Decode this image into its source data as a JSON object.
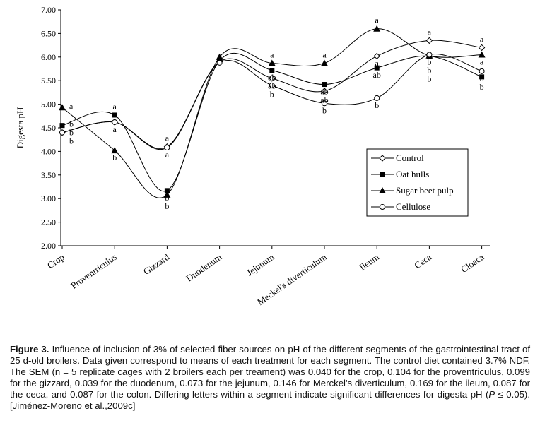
{
  "chart_data": {
    "type": "line",
    "ylabel": "Digesta pH",
    "ylim": [
      2.0,
      7.0
    ],
    "yticks": [
      "2.00",
      "2.50",
      "3.00",
      "3.50",
      "4.00",
      "4.50",
      "5.00",
      "5.50",
      "6.00",
      "6.50",
      "7.00"
    ],
    "categories": [
      "Crop",
      "Proventriculus",
      "Gizzard",
      "Duodenum",
      "Jejunum",
      "Meckel's diverticulum",
      "Ileum",
      "Ceca",
      "Cloaca"
    ],
    "legend_position": "inside-right",
    "smooth": true,
    "series": [
      {
        "name": "Control",
        "marker": "diamond-open",
        "values": [
          4.4,
          4.62,
          4.1,
          5.9,
          5.55,
          5.28,
          6.02,
          6.35,
          6.2
        ]
      },
      {
        "name": "Oat hulls",
        "marker": "square-filled",
        "values": [
          4.55,
          4.77,
          3.17,
          5.92,
          5.72,
          5.42,
          5.77,
          6.02,
          5.58
        ]
      },
      {
        "name": "Sugar beet pulp",
        "marker": "triangle-filled",
        "values": [
          4.93,
          4.02,
          3.08,
          6.0,
          5.87,
          5.87,
          6.6,
          6.03,
          6.05
        ]
      },
      {
        "name": "Cellulose",
        "marker": "circle-open",
        "values": [
          4.4,
          4.62,
          4.08,
          5.88,
          5.4,
          5.02,
          5.13,
          6.05,
          5.7
        ]
      }
    ],
    "annotations": [
      {
        "cat": 0,
        "series": "Sugar beet pulp",
        "label": "a"
      },
      {
        "cat": 0,
        "series": "Oat hulls",
        "label": "b"
      },
      {
        "cat": 0,
        "series": "Control",
        "label": "b"
      },
      {
        "cat": 0,
        "series": "Cellulose",
        "label": "b"
      },
      {
        "cat": 1,
        "series": "Oat hulls",
        "label": "a"
      },
      {
        "cat": 1,
        "series": "Control",
        "label": "a"
      },
      {
        "cat": 1,
        "series": "Sugar beet pulp",
        "label": "b"
      },
      {
        "cat": 2,
        "series": "Control",
        "label": "a"
      },
      {
        "cat": 2,
        "series": "Cellulose",
        "label": "a"
      },
      {
        "cat": 2,
        "series": "Oat hulls",
        "label": "b"
      },
      {
        "cat": 2,
        "series": "Sugar beet pulp",
        "label": "b"
      },
      {
        "cat": 4,
        "series": "Sugar beet pulp",
        "label": "a"
      },
      {
        "cat": 4,
        "series": "Control",
        "label": "ab"
      },
      {
        "cat": 4,
        "series": "Oat hulls",
        "label": "ab"
      },
      {
        "cat": 4,
        "series": "Cellulose",
        "label": "b"
      },
      {
        "cat": 5,
        "series": "Sugar beet pulp",
        "label": "a"
      },
      {
        "cat": 5,
        "series": "Oat hulls",
        "label": "ab"
      },
      {
        "cat": 5,
        "series": "Control",
        "label": "ab"
      },
      {
        "cat": 5,
        "series": "Cellulose",
        "label": "b"
      },
      {
        "cat": 6,
        "series": "Sugar beet pulp",
        "label": "a"
      },
      {
        "cat": 6,
        "series": "Control",
        "label": "a"
      },
      {
        "cat": 6,
        "series": "Oat hulls",
        "label": "ab"
      },
      {
        "cat": 6,
        "series": "Cellulose",
        "label": "b"
      },
      {
        "cat": 7,
        "series": "Control",
        "label": "a"
      },
      {
        "cat": 7,
        "series": "Cellulose",
        "label": "b"
      },
      {
        "cat": 7,
        "series": "Oat hulls",
        "label": "b"
      },
      {
        "cat": 7,
        "series": "Sugar beet pulp",
        "label": "b"
      },
      {
        "cat": 8,
        "series": "Control",
        "label": "a"
      },
      {
        "cat": 8,
        "series": "Sugar beet pulp",
        "label": "a"
      },
      {
        "cat": 8,
        "series": "Oat hulls",
        "label": "b"
      },
      {
        "cat": 8,
        "series": "Cellulose",
        "label": "b"
      }
    ]
  },
  "caption": {
    "label": "Figure 3.",
    "text_before": " Influence of inclusion of 3% of selected fiber sources on pH of the different segments of the gastrointestinal tract of 25 d-old broilers. Data given correspond to means of each treatment for each segment. The control diet contained 3.7% NDF. The SEM (n = 5 replicate cages with 2 broilers each per treament) was 0.040 for the crop, 0.104 for the proventriculus, 0.099 for the gizzard, 0.039 for the duodenum, 0.073 for the jejunum, 0.146 for Merckel's diverticulum, 0.169 for the ileum, 0.087 for the ceca, and 0.087 for the colon. Differing letters within a segment indicate significant differences for digesta pH (",
    "p_symbol": "P",
    "text_after": " ≤ 0.05). [Jiménez-Moreno et al.,2009c]"
  }
}
